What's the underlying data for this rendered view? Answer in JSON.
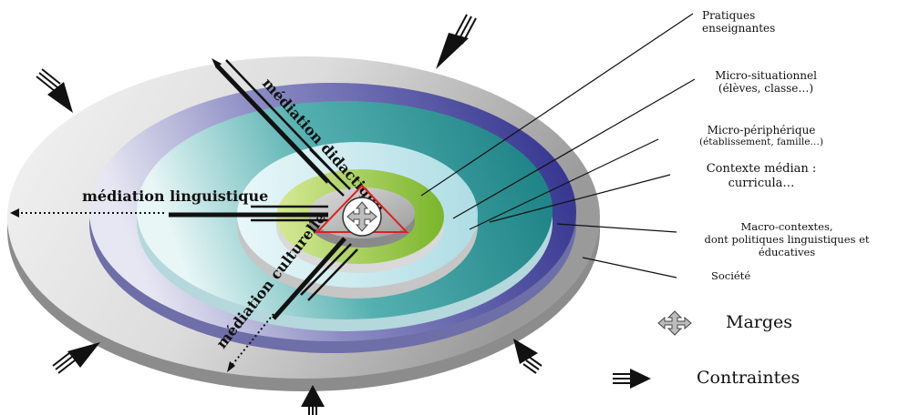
{
  "colors": {
    "outer": "#a8a8a8",
    "blue": "#2f2e8c",
    "teal": "#1d8a8d",
    "lightblue": "#bfe6ec",
    "green": "#8dbf3a",
    "core": "#bdbdbd",
    "triangle": "#e02020"
  },
  "diagram": {
    "axes": {
      "didactique": "médiation didactique",
      "linguistique": "médiation linguistique",
      "culturelle": "médiation culturelle"
    },
    "labels": {
      "pratiques": [
        "Pratiques",
        "enseignantes"
      ],
      "micro_situationnel": [
        "Micro-situationnel",
        "(élèves, classe…)"
      ],
      "micro_peripherique": [
        "Micro-périphérique",
        "(établissement, famille…)"
      ],
      "contexte_median": [
        "Contexte médian :",
        "curricula…"
      ],
      "macro": [
        "Macro-contextes,",
        "dont politiques linguistiques  et",
        "éducatives"
      ],
      "societe": "Société"
    }
  },
  "legend": {
    "marges": "Marges",
    "contraintes": "Contraintes"
  },
  "icons": [
    "four-way-arrow-icon",
    "constraint-arrow-icon"
  ]
}
